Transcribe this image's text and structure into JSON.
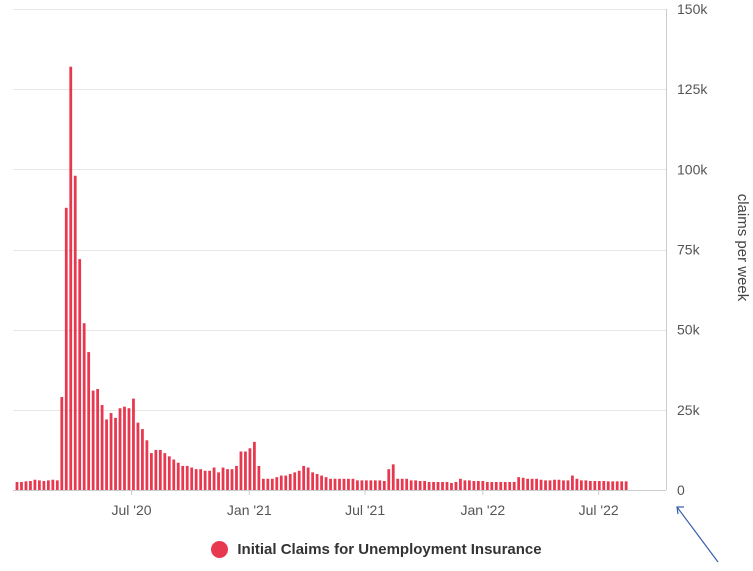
{
  "chart_data": {
    "type": "bar",
    "ylabel": "claims per week",
    "ylim": [
      0,
      150000
    ],
    "yticks": [
      {
        "value": 0,
        "label": "0"
      },
      {
        "value": 25000,
        "label": "25k"
      },
      {
        "value": 50000,
        "label": "50k"
      },
      {
        "value": 75000,
        "label": "75k"
      },
      {
        "value": 100000,
        "label": "100k"
      },
      {
        "value": 125000,
        "label": "125k"
      },
      {
        "value": 150000,
        "label": "150k"
      }
    ],
    "xlim": [
      "2020-01-04",
      "2022-10-08"
    ],
    "xticks": [
      {
        "date": "2020-07-01",
        "label": "Jul '20"
      },
      {
        "date": "2021-01-01",
        "label": "Jan '21"
      },
      {
        "date": "2021-07-01",
        "label": "Jul '21"
      },
      {
        "date": "2022-01-01",
        "label": "Jan '22"
      },
      {
        "date": "2022-07-01",
        "label": "Jul '22"
      }
    ],
    "grid": true,
    "y_axis_position": "right",
    "legend_position": "bottom-center",
    "series": [
      {
        "name": "Initial Claims for Unemployment Insurance",
        "color": "#e8384f",
        "frequency": "weekly",
        "start": "2020-01-04",
        "values": [
          2500,
          2500,
          2700,
          2800,
          3200,
          3000,
          2800,
          3000,
          3200,
          3000,
          29000,
          88000,
          132000,
          98000,
          72000,
          52000,
          43000,
          31000,
          31500,
          26500,
          22000,
          24000,
          22500,
          25500,
          26000,
          25500,
          28500,
          21000,
          19000,
          15500,
          11500,
          12500,
          12500,
          11500,
          10500,
          9500,
          8500,
          7500,
          7500,
          7000,
          6500,
          6500,
          6000,
          6000,
          7000,
          5500,
          7000,
          6500,
          6500,
          7500,
          12000,
          12000,
          13000,
          15000,
          7500,
          3500,
          3500,
          3500,
          4000,
          4500,
          4500,
          5000,
          5500,
          6000,
          7500,
          7000,
          5500,
          5000,
          4500,
          4000,
          3500,
          3500,
          3500,
          3500,
          3500,
          3500,
          3000,
          3000,
          3000,
          3000,
          3000,
          3000,
          2800,
          6500,
          8000,
          3500,
          3500,
          3500,
          3000,
          3000,
          2800,
          2800,
          2500,
          2500,
          2500,
          2500,
          2500,
          2200,
          2500,
          3500,
          3000,
          3000,
          2800,
          2800,
          2800,
          2500,
          2500,
          2500,
          2500,
          2500,
          2500,
          2500,
          4000,
          3800,
          3500,
          3500,
          3500,
          3200,
          3000,
          3000,
          3200,
          3200,
          3000,
          3000,
          4500,
          3500,
          3000,
          3000,
          2800,
          2800,
          2800,
          2800,
          2700,
          2700,
          2700,
          2700,
          2700
        ]
      }
    ]
  }
}
